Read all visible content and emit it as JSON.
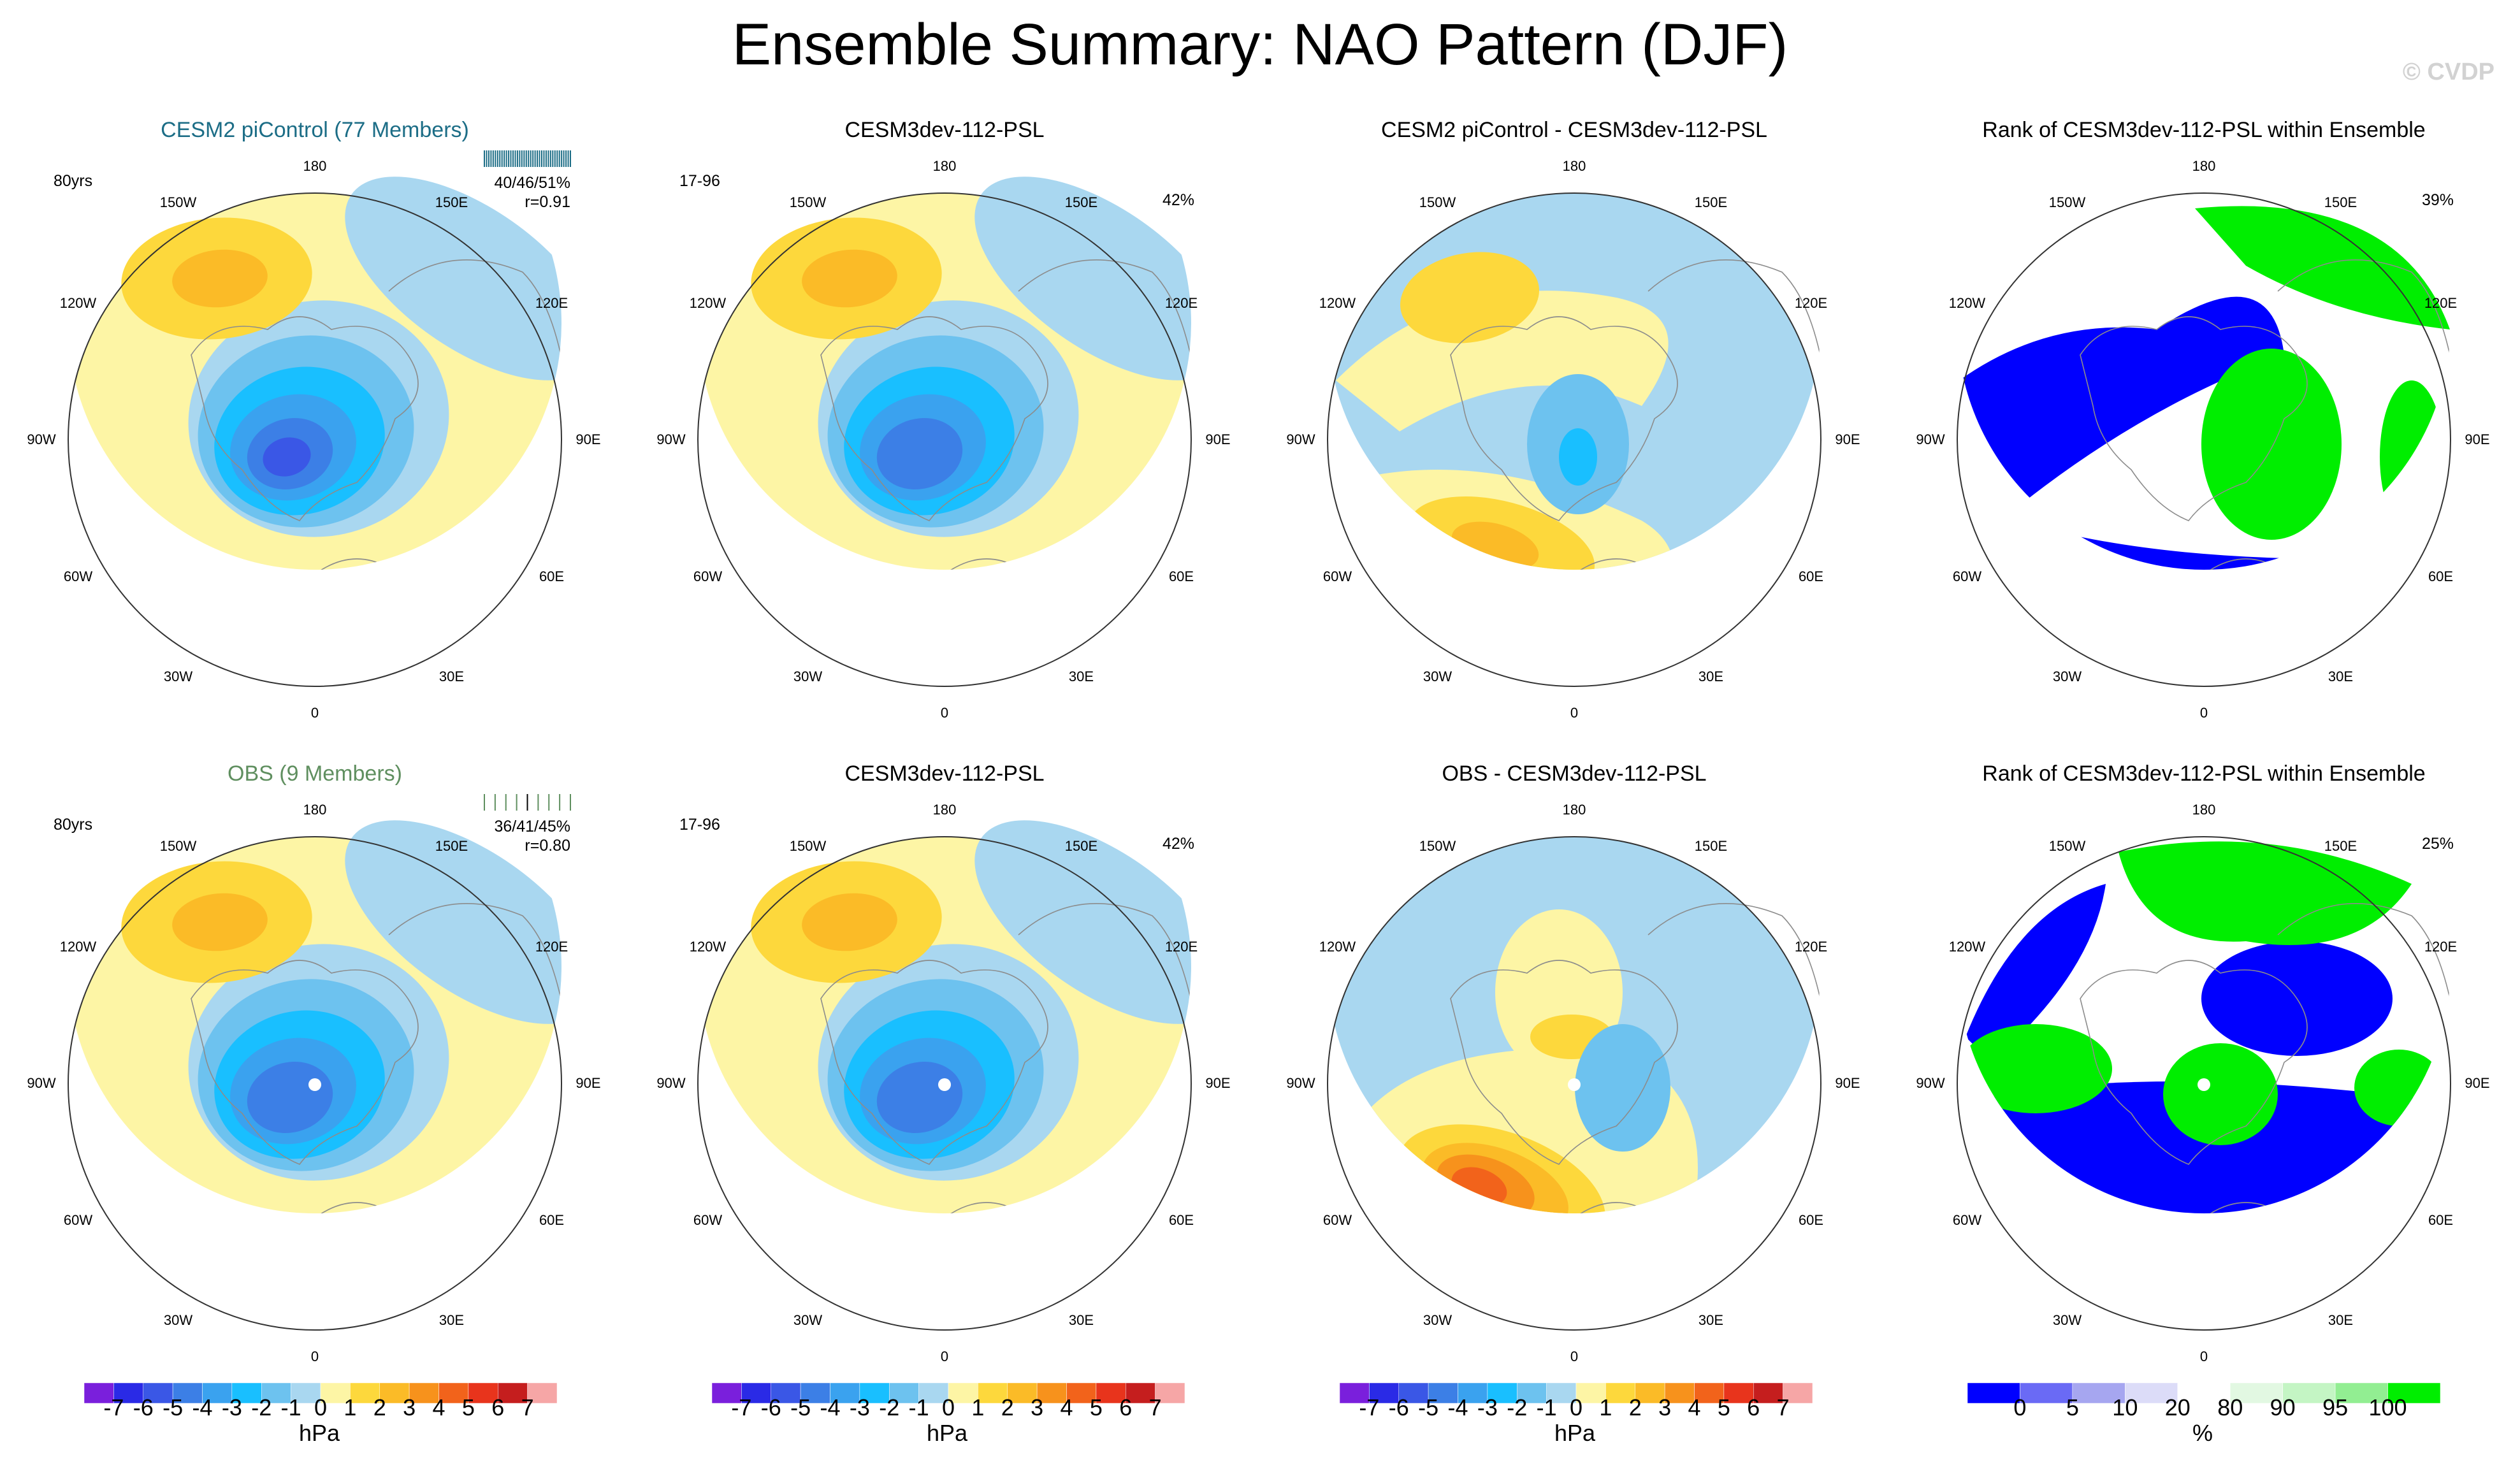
{
  "page": {
    "title": "Ensemble Summary: NAO Pattern (DJF)",
    "watermark": "© CVDP"
  },
  "longitude_labels": [
    "180",
    "150E",
    "120E",
    "90E",
    "60E",
    "30E",
    "0",
    "30W",
    "60W",
    "90W",
    "120W",
    "150W"
  ],
  "colors": {
    "cesm_title": "#1c6d86",
    "obs_title": "#5f8f5f",
    "land_outline": "#8c8c8c"
  },
  "rows": [
    {
      "panels": [
        {
          "title": "CESM2 piControl (77 Members)",
          "title_style": "cesm",
          "kind": "ens",
          "left_label": "80yrs",
          "stats": [
            "40/46/51%",
            "r=0.91"
          ]
        },
        {
          "title": "CESM3dev-112-PSL",
          "title_style": "plain",
          "kind": "case",
          "left_label": "17-96",
          "right_label": "42%"
        },
        {
          "title": "CESM2 piControl - CESM3dev-112-PSL",
          "title_style": "plain",
          "kind": "diff1"
        },
        {
          "title": "Rank of CESM3dev-112-PSL within Ensemble",
          "title_style": "plain",
          "kind": "rank1",
          "right_label": "39%"
        }
      ]
    },
    {
      "panels": [
        {
          "title": "OBS (9 Members)",
          "title_style": "obs",
          "kind": "obs",
          "left_label": "80yrs",
          "stats": [
            "36/41/45%",
            "r=0.80"
          ]
        },
        {
          "title": "CESM3dev-112-PSL",
          "title_style": "plain",
          "kind": "case",
          "left_label": "17-96",
          "right_label": "42%"
        },
        {
          "title": "OBS - CESM3dev-112-PSL",
          "title_style": "plain",
          "kind": "diff2"
        },
        {
          "title": "Rank of CESM3dev-112-PSL within Ensemble",
          "title_style": "plain",
          "kind": "rank2",
          "right_label": "25%"
        }
      ]
    }
  ],
  "colorbars": [
    {
      "unit": "hPa",
      "ticks": [
        "-7",
        "-6",
        "-5",
        "-4",
        "-3",
        "-2",
        "-1",
        "0",
        "1",
        "2",
        "3",
        "4",
        "5",
        "6",
        "7"
      ],
      "colors": [
        "#7a1fdc",
        "#2a2ae6",
        "#3a57e6",
        "#3c7fe6",
        "#3aa2ef",
        "#19bfff",
        "#6dc2ef",
        "#a9d7f0",
        "#fdf5a5",
        "#fdd83c",
        "#fbbb27",
        "#f7921c",
        "#f2631b",
        "#e8341c",
        "#c51e1e",
        "#f6a6a6"
      ]
    },
    {
      "unit": "hPa",
      "ticks": [
        "-7",
        "-6",
        "-5",
        "-4",
        "-3",
        "-2",
        "-1",
        "0",
        "1",
        "2",
        "3",
        "4",
        "5",
        "6",
        "7"
      ],
      "colors": [
        "#7a1fdc",
        "#2a2ae6",
        "#3a57e6",
        "#3c7fe6",
        "#3aa2ef",
        "#19bfff",
        "#6dc2ef",
        "#a9d7f0",
        "#fdf5a5",
        "#fdd83c",
        "#fbbb27",
        "#f7921c",
        "#f2631b",
        "#e8341c",
        "#c51e1e",
        "#f6a6a6"
      ]
    },
    {
      "unit": "hPa",
      "ticks": [
        "-7",
        "-6",
        "-5",
        "-4",
        "-3",
        "-2",
        "-1",
        "0",
        "1",
        "2",
        "3",
        "4",
        "5",
        "6",
        "7"
      ],
      "colors": [
        "#7a1fdc",
        "#2a2ae6",
        "#3a57e6",
        "#3c7fe6",
        "#3aa2ef",
        "#19bfff",
        "#6dc2ef",
        "#a9d7f0",
        "#fdf5a5",
        "#fdd83c",
        "#fbbb27",
        "#f7921c",
        "#f2631b",
        "#e8341c",
        "#c51e1e",
        "#f6a6a6"
      ]
    },
    {
      "unit": "%",
      "ticks": [
        "0",
        "5",
        "10",
        "20",
        "80",
        "90",
        "95",
        "100"
      ],
      "colors": [
        "#0000ff",
        "#6a6af5",
        "#a6a6f0",
        "#dcdcf8",
        "#ffffff",
        "#e2f8e2",
        "#c4f5c4",
        "#92ee92",
        "#00ee00"
      ]
    }
  ]
}
